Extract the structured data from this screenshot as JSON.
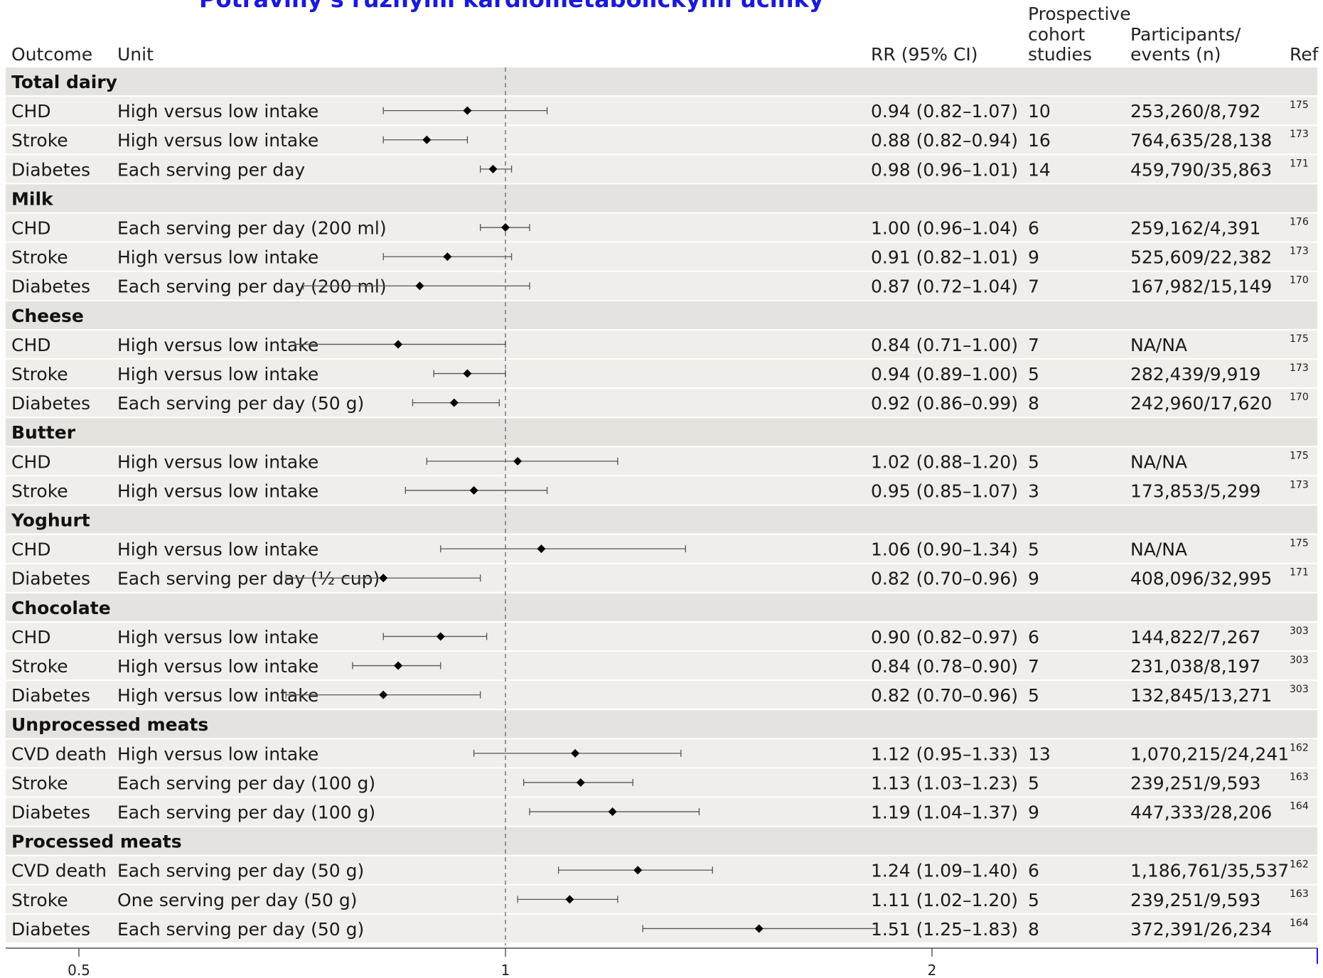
{
  "title": "Potraviny s různými kardiometabolickými účinky",
  "headers": {
    "outcome": "Outcome",
    "unit": "Unit",
    "rr": "RR (95% CI)",
    "studies_lines": [
      "Prospective",
      "cohort",
      "studies"
    ],
    "participants_lines": [
      "Participants/",
      "events (n)"
    ],
    "ref": "Ref"
  },
  "colors": {
    "group_band": "#e4e3df",
    "row_band": "#efeeeb",
    "row_separator": "#ffffff",
    "marker": "#000000",
    "whisker": "#555555",
    "reference_line": "#777777",
    "title": "#1a1adb"
  },
  "chart_data": {
    "type": "forest",
    "x_scale": "log",
    "reference_value": 1,
    "xlim": [
      0.4,
      3.25
    ],
    "x_ticks": [
      0.5,
      1,
      2
    ],
    "x_tick_labels": [
      "0.5",
      "1",
      "2"
    ],
    "groups": [
      {
        "name": "Total dairy",
        "rows": [
          {
            "outcome": "CHD",
            "unit": "High versus low intake",
            "rr": 0.94,
            "lo": 0.82,
            "hi": 1.07,
            "rr_text": "0.94 (0.82–1.07)",
            "studies": "10",
            "participants": "253,260/8,792",
            "ref": "175"
          },
          {
            "outcome": "Stroke",
            "unit": "High versus low intake",
            "rr": 0.88,
            "lo": 0.82,
            "hi": 0.94,
            "rr_text": "0.88 (0.82–0.94)",
            "studies": "16",
            "participants": "764,635/28,138",
            "ref": "173"
          },
          {
            "outcome": "Diabetes",
            "unit": "Each serving per day",
            "rr": 0.98,
            "lo": 0.96,
            "hi": 1.01,
            "rr_text": "0.98 (0.96–1.01)",
            "studies": "14",
            "participants": "459,790/35,863",
            "ref": "171"
          }
        ]
      },
      {
        "name": "Milk",
        "rows": [
          {
            "outcome": "CHD",
            "unit": "Each serving per day (200 ml)",
            "rr": 1.0,
            "lo": 0.96,
            "hi": 1.04,
            "rr_text": "1.00 (0.96–1.04)",
            "studies": "6",
            "participants": "259,162/4,391",
            "ref": "176"
          },
          {
            "outcome": "Stroke",
            "unit": "High versus low intake",
            "rr": 0.91,
            "lo": 0.82,
            "hi": 1.01,
            "rr_text": "0.91 (0.82–1.01)",
            "studies": "9",
            "participants": "525,609/22,382",
            "ref": "173"
          },
          {
            "outcome": "Diabetes",
            "unit": "Each serving per day (200 ml)",
            "rr": 0.87,
            "lo": 0.72,
            "hi": 1.04,
            "rr_text": "0.87 (0.72–1.04)",
            "studies": "7",
            "participants": "167,982/15,149",
            "ref": "170"
          }
        ]
      },
      {
        "name": "Cheese",
        "rows": [
          {
            "outcome": "CHD",
            "unit": "High versus low intake",
            "rr": 0.84,
            "lo": 0.71,
            "hi": 1.0,
            "rr_text": "0.84 (0.71–1.00)",
            "studies": "7",
            "participants": "NA/NA",
            "ref": "175"
          },
          {
            "outcome": "Stroke",
            "unit": "High versus low intake",
            "rr": 0.94,
            "lo": 0.89,
            "hi": 1.0,
            "rr_text": "0.94 (0.89–1.00)",
            "studies": "5",
            "participants": "282,439/9,919",
            "ref": "173"
          },
          {
            "outcome": "Diabetes",
            "unit": "Each serving per day (50 g)",
            "rr": 0.92,
            "lo": 0.86,
            "hi": 0.99,
            "rr_text": "0.92 (0.86–0.99)",
            "studies": "8",
            "participants": "242,960/17,620",
            "ref": "170"
          }
        ]
      },
      {
        "name": "Butter",
        "rows": [
          {
            "outcome": "CHD",
            "unit": "High versus low intake",
            "rr": 1.02,
            "lo": 0.88,
            "hi": 1.2,
            "rr_text": "1.02 (0.88–1.20)",
            "studies": "5",
            "participants": "NA/NA",
            "ref": "175"
          },
          {
            "outcome": "Stroke",
            "unit": "High versus low intake",
            "rr": 0.95,
            "lo": 0.85,
            "hi": 1.07,
            "rr_text": "0.95 (0.85–1.07)",
            "studies": "3",
            "participants": "173,853/5,299",
            "ref": "173"
          }
        ]
      },
      {
        "name": "Yoghurt",
        "rows": [
          {
            "outcome": "CHD",
            "unit": "High versus low intake",
            "rr": 1.06,
            "lo": 0.9,
            "hi": 1.34,
            "rr_text": "1.06 (0.90–1.34)",
            "studies": "5",
            "participants": "NA/NA",
            "ref": "175"
          },
          {
            "outcome": "Diabetes",
            "unit": "Each serving per day (½ cup)",
            "rr": 0.82,
            "lo": 0.7,
            "hi": 0.96,
            "rr_text": "0.82 (0.70–0.96)",
            "studies": "9",
            "participants": "408,096/32,995",
            "ref": "171"
          }
        ]
      },
      {
        "name": "Chocolate",
        "rows": [
          {
            "outcome": "CHD",
            "unit": "High versus low intake",
            "rr": 0.9,
            "lo": 0.82,
            "hi": 0.97,
            "rr_text": "0.90 (0.82–0.97)",
            "studies": "6",
            "participants": "144,822/7,267",
            "ref": "303"
          },
          {
            "outcome": "Stroke",
            "unit": "High versus low intake",
            "rr": 0.84,
            "lo": 0.78,
            "hi": 0.9,
            "rr_text": "0.84 (0.78–0.90)",
            "studies": "7",
            "participants": "231,038/8,197",
            "ref": "303"
          },
          {
            "outcome": "Diabetes",
            "unit": "High versus low intake",
            "rr": 0.82,
            "lo": 0.7,
            "hi": 0.96,
            "rr_text": "0.82 (0.70–0.96)",
            "studies": "5",
            "participants": "132,845/13,271",
            "ref": "303"
          }
        ]
      },
      {
        "name": "Unprocessed meats",
        "rows": [
          {
            "outcome": "CVD death",
            "unit": "High versus low intake",
            "rr": 1.12,
            "lo": 0.95,
            "hi": 1.33,
            "rr_text": "1.12 (0.95–1.33)",
            "studies": "13",
            "participants": "1,070,215/24,241",
            "ref": "162"
          },
          {
            "outcome": "Stroke",
            "unit": "Each serving per day (100 g)",
            "rr": 1.13,
            "lo": 1.03,
            "hi": 1.23,
            "rr_text": "1.13 (1.03–1.23)",
            "studies": "5",
            "participants": "239,251/9,593",
            "ref": "163"
          },
          {
            "outcome": "Diabetes",
            "unit": "Each serving per day (100 g)",
            "rr": 1.19,
            "lo": 1.04,
            "hi": 1.37,
            "rr_text": "1.19 (1.04–1.37)",
            "studies": "9",
            "participants": "447,333/28,206",
            "ref": "164"
          }
        ]
      },
      {
        "name": "Processed meats",
        "rows": [
          {
            "outcome": "CVD death",
            "unit": "Each serving per day (50 g)",
            "rr": 1.24,
            "lo": 1.09,
            "hi": 1.4,
            "rr_text": "1.24 (1.09–1.40)",
            "studies": "6",
            "participants": "1,186,761/35,537",
            "ref": "162"
          },
          {
            "outcome": "Stroke",
            "unit": "One serving per day (50 g)",
            "rr": 1.11,
            "lo": 1.02,
            "hi": 1.2,
            "rr_text": "1.11 (1.02–1.20)",
            "studies": "5",
            "participants": "239,251/9,593",
            "ref": "163"
          },
          {
            "outcome": "Diabetes",
            "unit": "Each serving per day (50 g)",
            "rr": 1.51,
            "lo": 1.25,
            "hi": 1.83,
            "rr_text": "1.51 (1.25–1.83)",
            "studies": "8",
            "participants": "372,391/26,234",
            "ref": "164"
          }
        ]
      }
    ]
  }
}
